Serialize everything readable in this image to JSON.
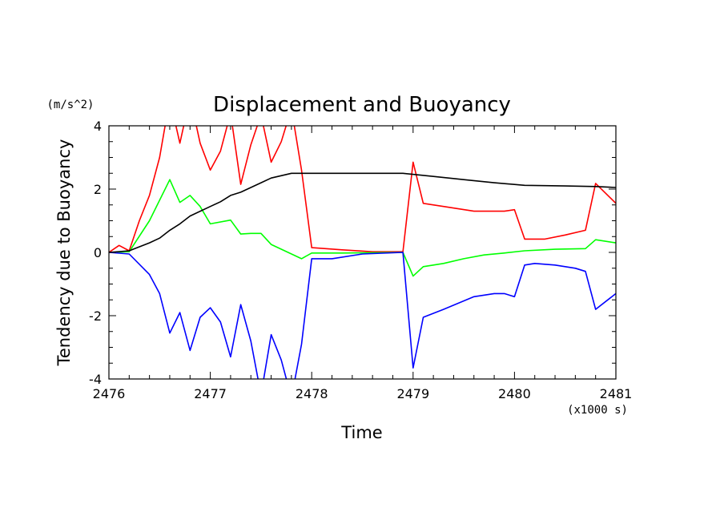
{
  "chart_data": {
    "type": "line",
    "title": "Displacement and Buoyancy",
    "xlabel": "Time",
    "ylabel": "Tendency due to Buoyancy",
    "x_unit": "(x1000 s)",
    "y_unit": "(m/s^2)",
    "xlim": [
      2476,
      2481
    ],
    "ylim": [
      -4,
      4
    ],
    "x_ticks": [
      "2476",
      "2477",
      "2478",
      "2479",
      "2480",
      "2481"
    ],
    "y_ticks": [
      "-4",
      "-2",
      "0",
      "2",
      "4"
    ],
    "grid": false,
    "series": [
      {
        "color": "#ff0000",
        "points": [
          [
            2476.0,
            0.0
          ],
          [
            2476.1,
            0.22
          ],
          [
            2476.2,
            0.05
          ],
          [
            2476.3,
            1.0
          ],
          [
            2476.4,
            1.8
          ],
          [
            2476.5,
            3.0
          ],
          [
            2476.6,
            4.85
          ],
          [
            2476.7,
            3.45
          ],
          [
            2476.8,
            4.9
          ],
          [
            2476.9,
            3.45
          ],
          [
            2477.0,
            2.6
          ],
          [
            2477.1,
            3.2
          ],
          [
            2477.2,
            4.4
          ],
          [
            2477.3,
            2.15
          ],
          [
            2477.4,
            3.4
          ],
          [
            2477.5,
            4.35
          ],
          [
            2477.6,
            2.85
          ],
          [
            2477.7,
            3.5
          ],
          [
            2477.8,
            4.55
          ],
          [
            2477.9,
            2.6
          ],
          [
            2478.0,
            0.15
          ],
          [
            2478.3,
            0.08
          ],
          [
            2478.6,
            0.02
          ],
          [
            2478.9,
            0.02
          ],
          [
            2479.0,
            2.85
          ],
          [
            2479.1,
            1.55
          ],
          [
            2479.3,
            1.45
          ],
          [
            2479.6,
            1.3
          ],
          [
            2479.9,
            1.3
          ],
          [
            2480.0,
            1.35
          ],
          [
            2480.1,
            0.42
          ],
          [
            2480.3,
            0.42
          ],
          [
            2480.5,
            0.55
          ],
          [
            2480.7,
            0.7
          ],
          [
            2480.8,
            2.18
          ],
          [
            2481.0,
            1.55
          ]
        ]
      },
      {
        "color": "#00ff00",
        "points": [
          [
            2476.0,
            0.0
          ],
          [
            2476.2,
            0.02
          ],
          [
            2476.4,
            1.0
          ],
          [
            2476.6,
            2.3
          ],
          [
            2476.7,
            1.58
          ],
          [
            2476.8,
            1.8
          ],
          [
            2476.9,
            1.45
          ],
          [
            2477.0,
            0.9
          ],
          [
            2477.2,
            1.02
          ],
          [
            2477.3,
            0.58
          ],
          [
            2477.4,
            0.6
          ],
          [
            2477.5,
            0.6
          ],
          [
            2477.6,
            0.25
          ],
          [
            2477.9,
            -0.2
          ],
          [
            2478.0,
            -0.02
          ],
          [
            2478.3,
            -0.02
          ],
          [
            2478.9,
            0.0
          ],
          [
            2479.0,
            -0.75
          ],
          [
            2479.1,
            -0.45
          ],
          [
            2479.3,
            -0.35
          ],
          [
            2479.5,
            -0.2
          ],
          [
            2479.7,
            -0.08
          ],
          [
            2479.9,
            -0.02
          ],
          [
            2480.1,
            0.05
          ],
          [
            2480.4,
            0.1
          ],
          [
            2480.7,
            0.12
          ],
          [
            2480.8,
            0.4
          ],
          [
            2481.0,
            0.3
          ]
        ]
      },
      {
        "color": "#0000ff",
        "points": [
          [
            2476.0,
            0.0
          ],
          [
            2476.2,
            -0.05
          ],
          [
            2476.4,
            -0.7
          ],
          [
            2476.5,
            -1.3
          ],
          [
            2476.6,
            -2.55
          ],
          [
            2476.7,
            -1.9
          ],
          [
            2476.8,
            -3.1
          ],
          [
            2476.9,
            -2.05
          ],
          [
            2477.0,
            -1.75
          ],
          [
            2477.1,
            -2.2
          ],
          [
            2477.2,
            -3.3
          ],
          [
            2477.3,
            -1.65
          ],
          [
            2477.4,
            -2.8
          ],
          [
            2477.5,
            -4.5
          ],
          [
            2477.6,
            -2.6
          ],
          [
            2477.7,
            -3.4
          ],
          [
            2477.8,
            -4.6
          ],
          [
            2477.9,
            -2.9
          ],
          [
            2478.0,
            -0.2
          ],
          [
            2478.2,
            -0.2
          ],
          [
            2478.5,
            -0.05
          ],
          [
            2478.9,
            0.0
          ],
          [
            2479.0,
            -3.65
          ],
          [
            2479.1,
            -2.05
          ],
          [
            2479.3,
            -1.8
          ],
          [
            2479.6,
            -1.4
          ],
          [
            2479.8,
            -1.3
          ],
          [
            2479.9,
            -1.3
          ],
          [
            2480.0,
            -1.4
          ],
          [
            2480.1,
            -0.4
          ],
          [
            2480.2,
            -0.35
          ],
          [
            2480.4,
            -0.4
          ],
          [
            2480.6,
            -0.5
          ],
          [
            2480.7,
            -0.6
          ],
          [
            2480.8,
            -1.8
          ],
          [
            2481.0,
            -1.3
          ]
        ]
      },
      {
        "color": "#000000",
        "points": [
          [
            2476.0,
            0.0
          ],
          [
            2476.2,
            0.05
          ],
          [
            2476.4,
            0.3
          ],
          [
            2476.5,
            0.45
          ],
          [
            2476.6,
            0.7
          ],
          [
            2476.7,
            0.9
          ],
          [
            2476.8,
            1.15
          ],
          [
            2477.0,
            1.45
          ],
          [
            2477.1,
            1.6
          ],
          [
            2477.2,
            1.8
          ],
          [
            2477.3,
            1.9
          ],
          [
            2477.5,
            2.2
          ],
          [
            2477.6,
            2.35
          ],
          [
            2477.8,
            2.5
          ],
          [
            2478.0,
            2.5
          ],
          [
            2478.5,
            2.5
          ],
          [
            2478.9,
            2.5
          ],
          [
            2479.2,
            2.4
          ],
          [
            2479.5,
            2.3
          ],
          [
            2479.8,
            2.2
          ],
          [
            2480.1,
            2.12
          ],
          [
            2480.5,
            2.1
          ],
          [
            2480.8,
            2.08
          ],
          [
            2481.0,
            2.05
          ]
        ]
      }
    ]
  }
}
